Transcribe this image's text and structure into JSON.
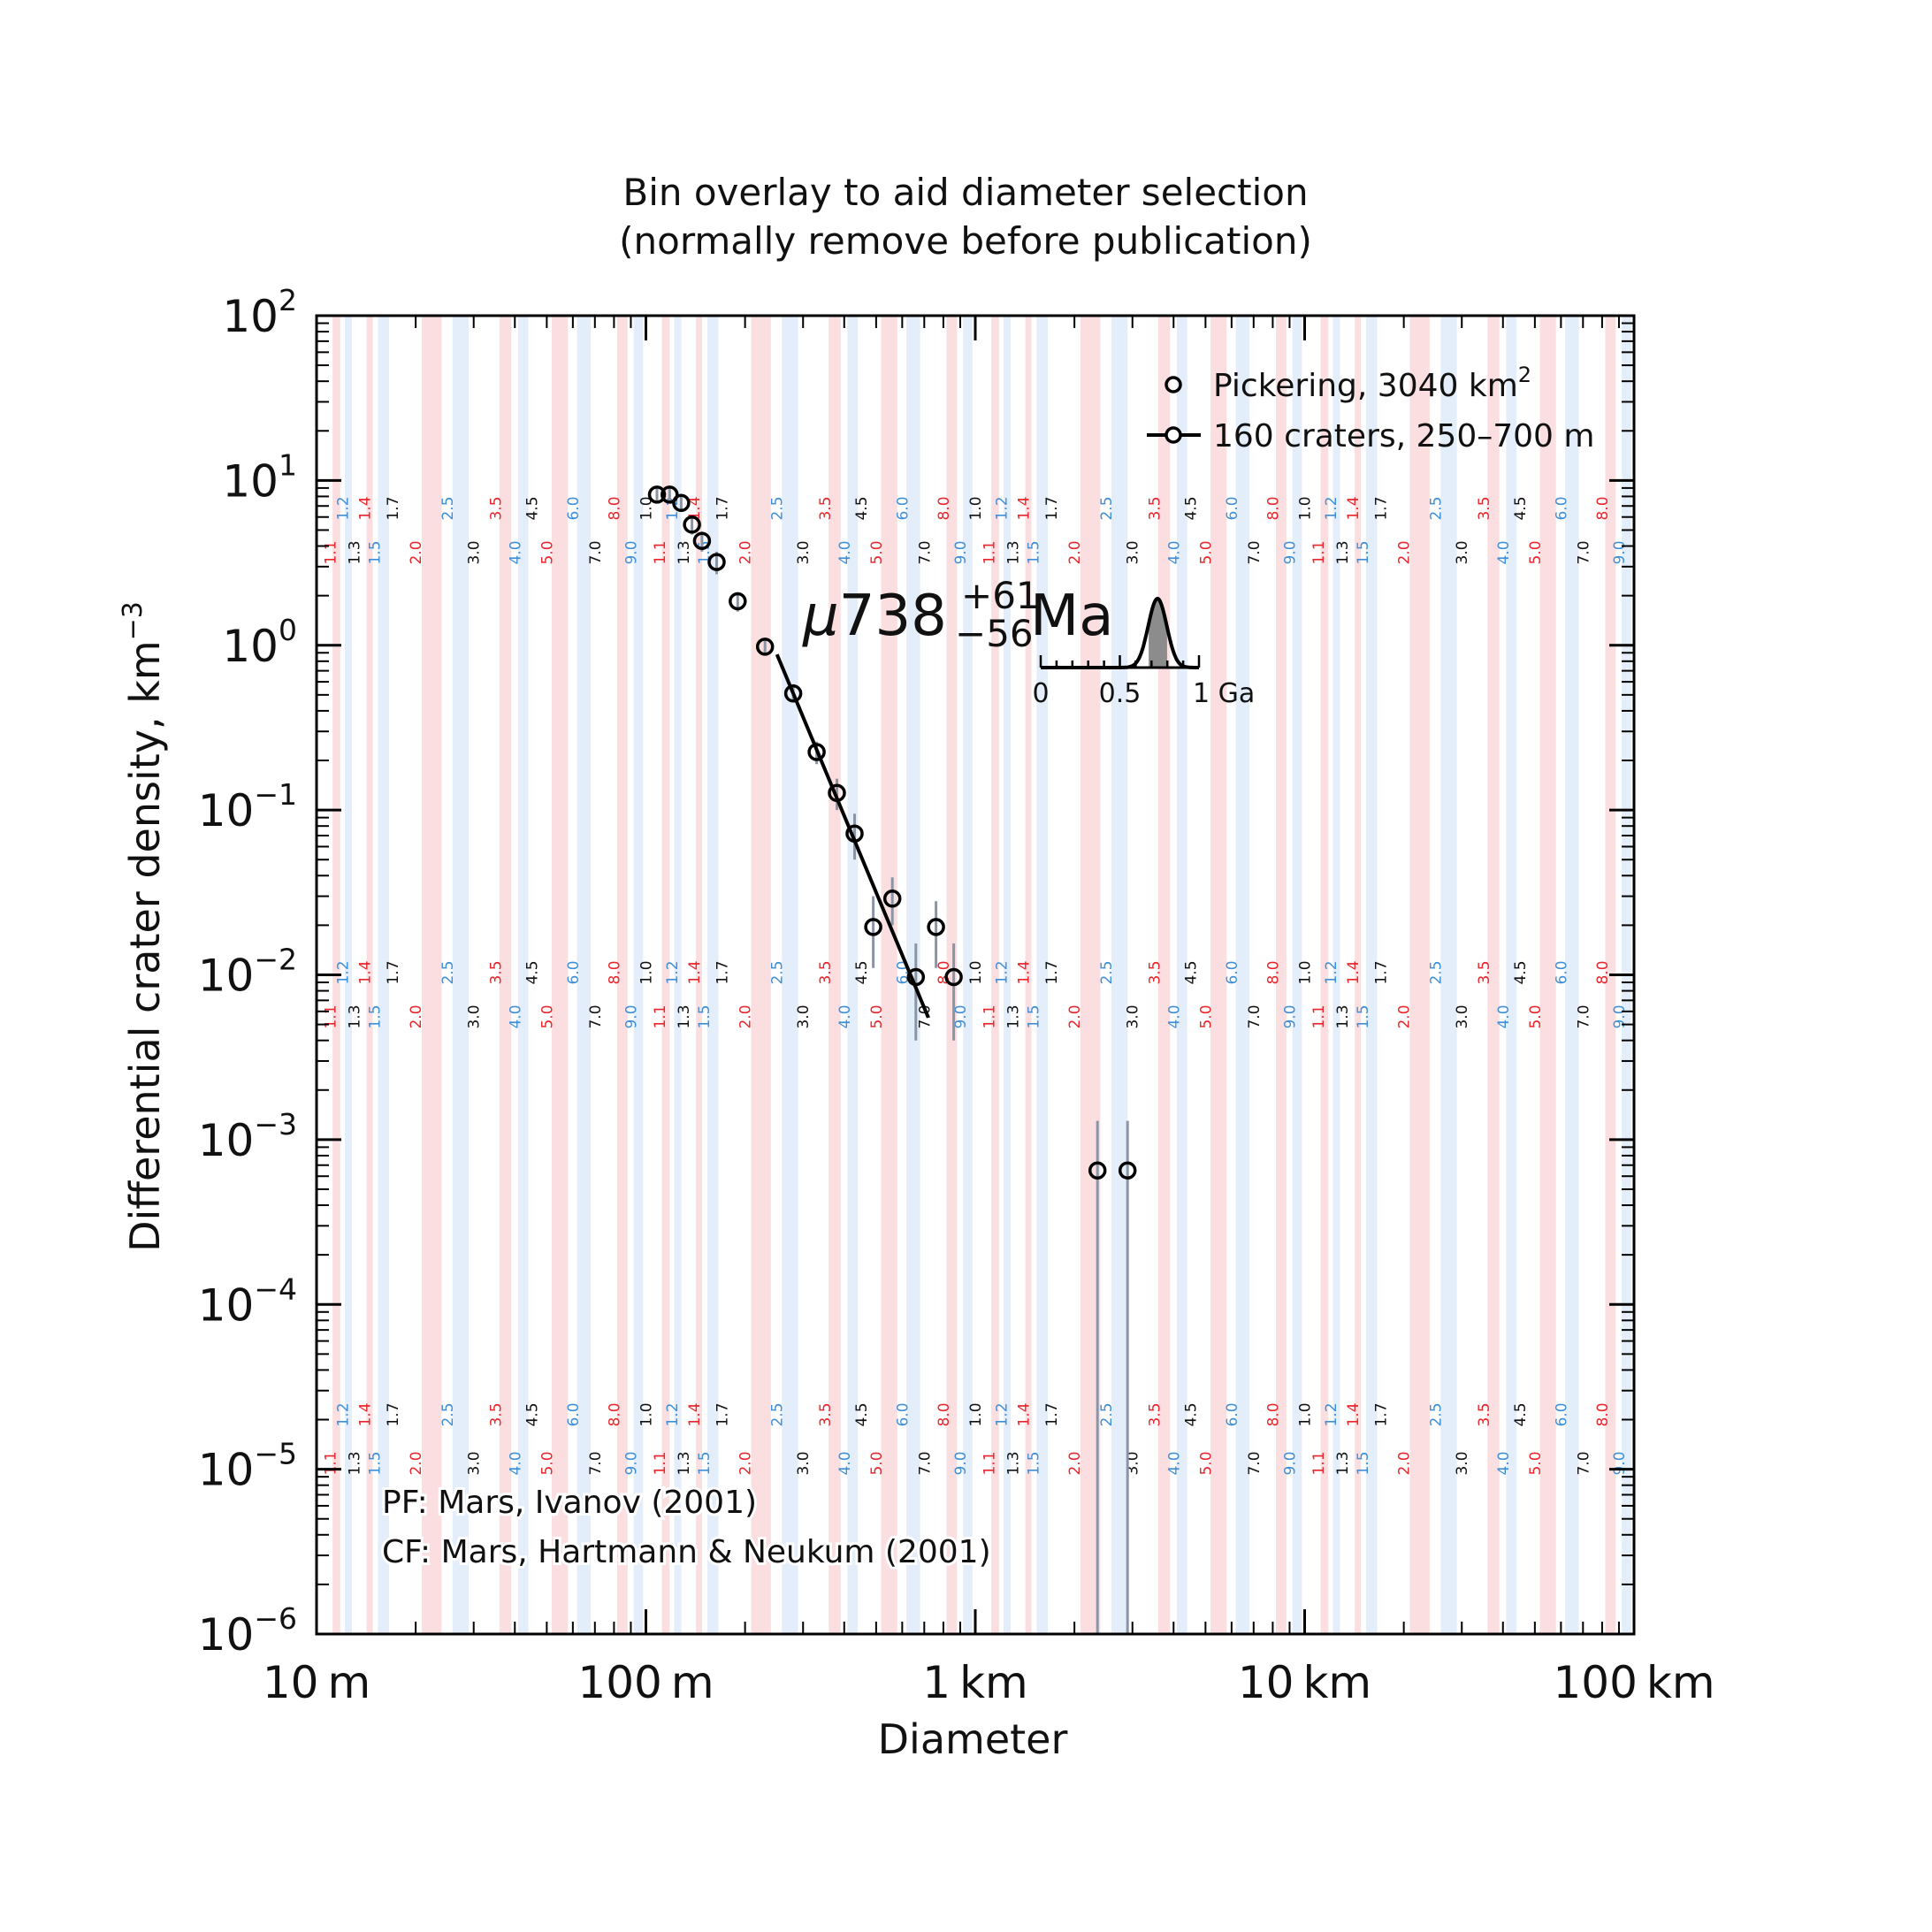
{
  "title_lines": [
    "Bin overlay to aid diameter selection",
    "(normally remove before publication)"
  ],
  "legend": {
    "points_label_main": "Pickering, 3040 km",
    "points_label_sup": "2",
    "fit_label": "160 craters, 250–700 m"
  },
  "age_label": {
    "prefix": "μ",
    "value": "738",
    "plus": "+61",
    "minus": "−56",
    "unit": "Ma"
  },
  "inset": {
    "tick_labels": [
      "0",
      "0.5",
      "1 Ga"
    ]
  },
  "notes": [
    "PF: Mars, Ivanov (2001)",
    "CF: Mars, Hartmann & Neukum (2001)"
  ],
  "colors": {
    "red_band": "#f8c9cc",
    "blue_band": "#d0e3f6",
    "red_text": "#e8262b",
    "blue_text": "#3f8fd8",
    "black_text": "#111111",
    "errbar": "#8a95a5"
  },
  "chart_data": {
    "type": "scatter",
    "xscale": "log",
    "yscale": "log",
    "xlabel": "Diameter",
    "ylabel": "Differential crater density, km",
    "ylabel_sup": "−3",
    "xlim_km": [
      0.01,
      100
    ],
    "ylim": [
      1e-06,
      100
    ],
    "x_ticks": [
      {
        "value": 0.01,
        "num": "10",
        "unit": "m"
      },
      {
        "value": 0.1,
        "num": "100",
        "unit": "m"
      },
      {
        "value": 1,
        "num": "1",
        "unit": "km"
      },
      {
        "value": 10,
        "num": "10",
        "unit": "km"
      },
      {
        "value": 100,
        "num": "100",
        "unit": "km"
      }
    ],
    "y_ticks": [
      {
        "value": 100,
        "base": "10",
        "exp": "2"
      },
      {
        "value": 10,
        "base": "10",
        "exp": "1"
      },
      {
        "value": 1,
        "base": "10",
        "exp": "0"
      },
      {
        "value": 0.1,
        "base": "10",
        "exp": "−1"
      },
      {
        "value": 0.01,
        "base": "10",
        "exp": "−2"
      },
      {
        "value": 0.001,
        "base": "10",
        "exp": "−3"
      },
      {
        "value": 0.0001,
        "base": "10",
        "exp": "−4"
      },
      {
        "value": 1e-05,
        "base": "10",
        "exp": "−5"
      },
      {
        "value": 1e-06,
        "base": "10",
        "exp": "−6"
      }
    ],
    "bin_labels": [
      {
        "label": "1.1",
        "color": "red"
      },
      {
        "label": "1.2",
        "color": "blue"
      },
      {
        "label": "1.3",
        "color": "black"
      },
      {
        "label": "1.4",
        "color": "red"
      },
      {
        "label": "1.5",
        "color": "blue"
      },
      {
        "label": "1.7",
        "color": "black"
      },
      {
        "label": "2.0",
        "color": "red"
      },
      {
        "label": "2.5",
        "color": "blue"
      },
      {
        "label": "3.0",
        "color": "black"
      },
      {
        "label": "3.5",
        "color": "red"
      },
      {
        "label": "4.0",
        "color": "blue"
      },
      {
        "label": "4.5",
        "color": "black"
      },
      {
        "label": "5.0",
        "color": "red"
      },
      {
        "label": "6.0",
        "color": "blue"
      },
      {
        "label": "7.0",
        "color": "black"
      },
      {
        "label": "8.0",
        "color": "red"
      },
      {
        "label": "9.0",
        "color": "blue"
      },
      {
        "label": "1.0",
        "color": "black"
      }
    ],
    "series": [
      {
        "name": "Pickering, 3040 km²",
        "points": [
          {
            "d": 0.108,
            "y": 8.2,
            "lo": 7.4,
            "hi": 9.0
          },
          {
            "d": 0.118,
            "y": 8.2,
            "lo": 7.4,
            "hi": 9.0
          },
          {
            "d": 0.128,
            "y": 7.3,
            "lo": 6.5,
            "hi": 8.1
          },
          {
            "d": 0.138,
            "y": 5.4,
            "lo": 4.7,
            "hi": 6.1
          },
          {
            "d": 0.148,
            "y": 4.3,
            "lo": 3.7,
            "hi": 4.9
          },
          {
            "d": 0.164,
            "y": 3.2,
            "lo": 2.7,
            "hi": 3.7
          },
          {
            "d": 0.19,
            "y": 1.85,
            "lo": 1.6,
            "hi": 2.1
          },
          {
            "d": 0.23,
            "y": 0.98,
            "lo": 0.88,
            "hi": 1.08
          },
          {
            "d": 0.28,
            "y": 0.51,
            "lo": 0.45,
            "hi": 0.58
          },
          {
            "d": 0.33,
            "y": 0.225,
            "lo": 0.19,
            "hi": 0.26
          },
          {
            "d": 0.38,
            "y": 0.127,
            "lo": 0.1,
            "hi": 0.155
          },
          {
            "d": 0.43,
            "y": 0.072,
            "lo": 0.05,
            "hi": 0.095
          },
          {
            "d": 0.49,
            "y": 0.0195,
            "lo": 0.011,
            "hi": 0.03
          },
          {
            "d": 0.56,
            "y": 0.029,
            "lo": 0.02,
            "hi": 0.039
          },
          {
            "d": 0.66,
            "y": 0.0097,
            "lo": 0.004,
            "hi": 0.0155
          },
          {
            "d": 0.76,
            "y": 0.0195,
            "lo": 0.011,
            "hi": 0.028
          },
          {
            "d": 0.86,
            "y": 0.0097,
            "lo": 0.004,
            "hi": 0.0155
          },
          {
            "d": 2.35,
            "y": 0.00065,
            "lo": 1e-06,
            "hi": 0.0013
          },
          {
            "d": 2.9,
            "y": 0.00065,
            "lo": 1e-06,
            "hi": 0.0013
          }
        ]
      },
      {
        "name": "160 craters, 250–700 m",
        "line": [
          {
            "d": 0.25,
            "y": 0.88
          },
          {
            "d": 0.72,
            "y": 0.0055
          }
        ]
      }
    ],
    "age_distribution": {
      "x_ga": [
        0,
        0.5,
        1
      ],
      "mode_ga": 0.738,
      "ci_ga": [
        0.682,
        0.799
      ]
    }
  }
}
